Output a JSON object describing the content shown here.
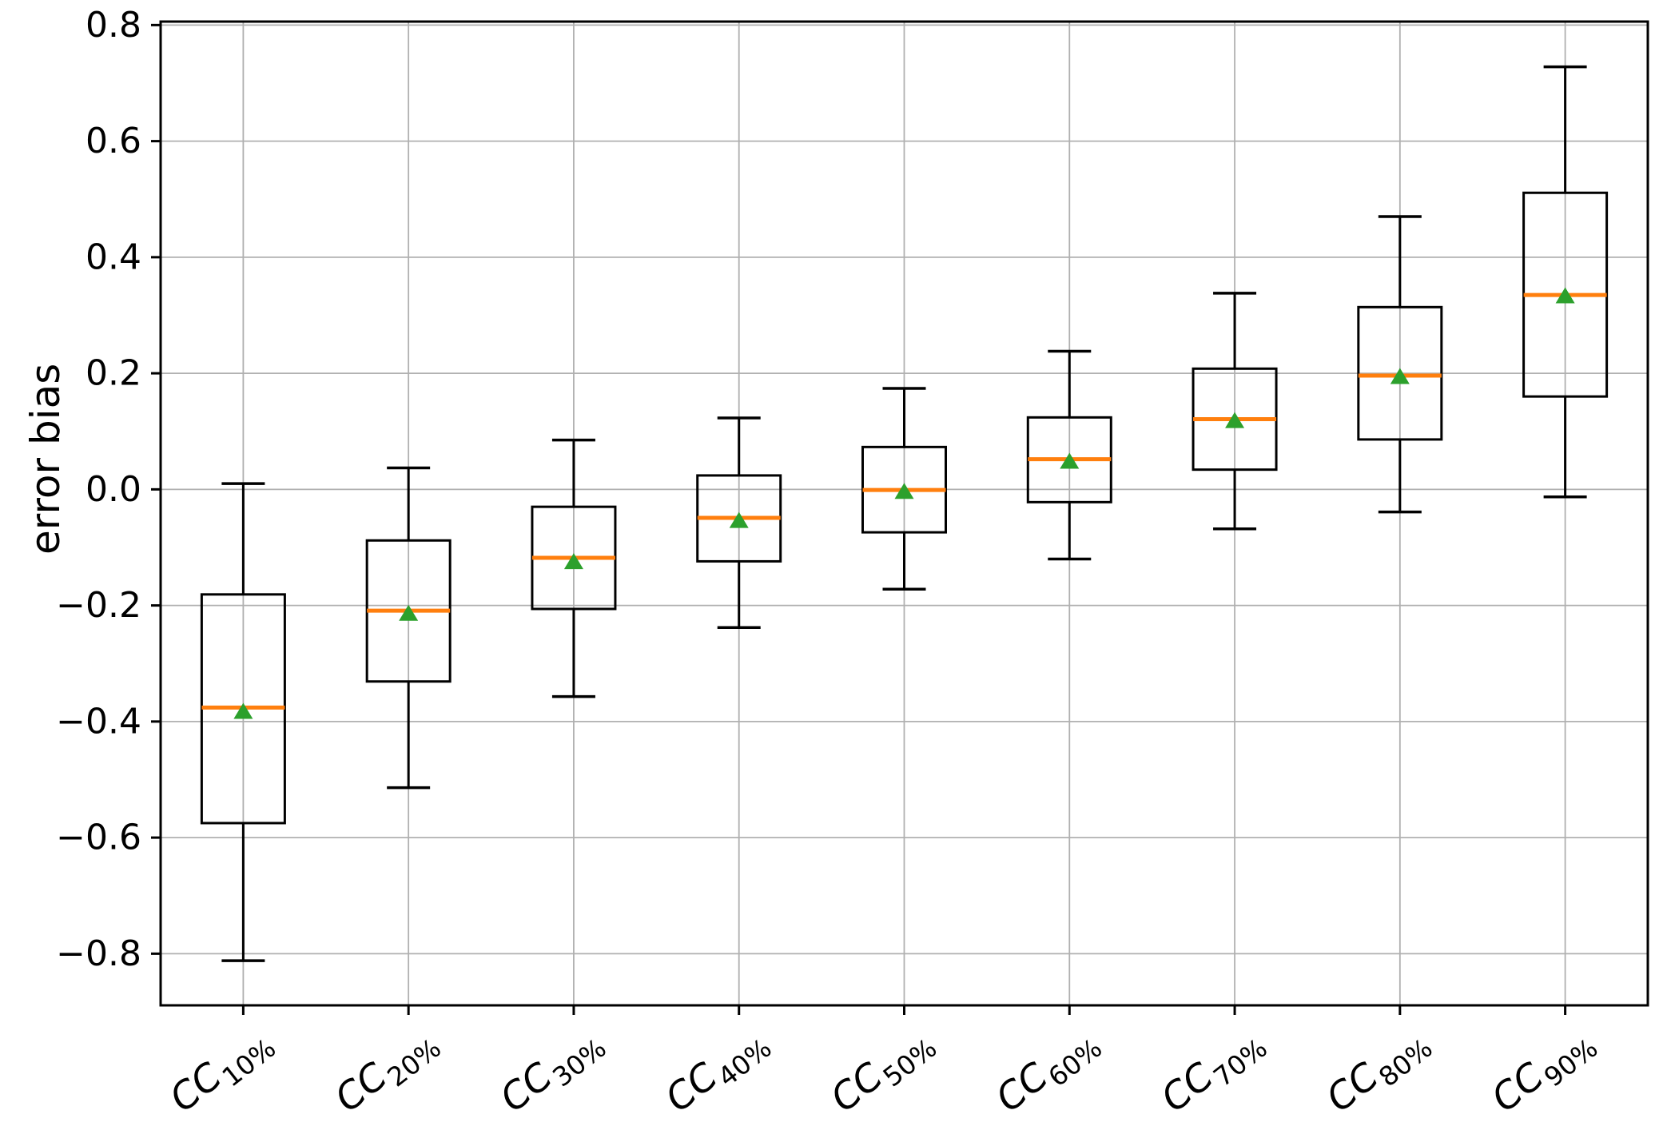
{
  "chart_data": {
    "type": "boxplot",
    "title": "",
    "xlabel": "",
    "ylabel": "error bias",
    "grid": true,
    "legend": null,
    "y_axis": {
      "label": "error bias",
      "ticks": [
        -0.8,
        -0.6,
        -0.4,
        -0.2,
        0.0,
        0.2,
        0.4,
        0.6,
        0.8
      ],
      "tick_labels": [
        "−0.8",
        "−0.6",
        "−0.4",
        "−0.2",
        "0.0",
        "0.2",
        "0.4",
        "0.6",
        "0.8"
      ],
      "lim": [
        -0.889,
        0.806
      ]
    },
    "categories": [
      {
        "base": "CC",
        "subscript": "10%"
      },
      {
        "base": "CC",
        "subscript": "20%"
      },
      {
        "base": "CC",
        "subscript": "30%"
      },
      {
        "base": "CC",
        "subscript": "40%"
      },
      {
        "base": "CC",
        "subscript": "50%"
      },
      {
        "base": "CC",
        "subscript": "60%"
      },
      {
        "base": "CC",
        "subscript": "70%"
      },
      {
        "base": "CC",
        "subscript": "80%"
      },
      {
        "base": "CC",
        "subscript": "90%"
      }
    ],
    "boxes": [
      {
        "category": "CC10%",
        "whisker_low": -0.812,
        "q1": -0.575,
        "median": -0.376,
        "q3": -0.181,
        "whisker_high": 0.01,
        "mean": -0.383
      },
      {
        "category": "CC20%",
        "whisker_low": -0.514,
        "q1": -0.331,
        "median": -0.209,
        "q3": -0.088,
        "whisker_high": 0.037,
        "mean": -0.214
      },
      {
        "category": "CC30%",
        "whisker_low": -0.357,
        "q1": -0.206,
        "median": -0.118,
        "q3": -0.03,
        "whisker_high": 0.085,
        "mean": -0.125
      },
      {
        "category": "CC40%",
        "whisker_low": -0.238,
        "q1": -0.124,
        "median": -0.049,
        "q3": 0.024,
        "whisker_high": 0.123,
        "mean": -0.054
      },
      {
        "category": "CC50%",
        "whisker_low": -0.172,
        "q1": -0.074,
        "median": -0.001,
        "q3": 0.073,
        "whisker_high": 0.174,
        "mean": -0.004
      },
      {
        "category": "CC60%",
        "whisker_low": -0.12,
        "q1": -0.022,
        "median": 0.052,
        "q3": 0.124,
        "whisker_high": 0.238,
        "mean": 0.048
      },
      {
        "category": "CC70%",
        "whisker_low": -0.068,
        "q1": 0.034,
        "median": 0.121,
        "q3": 0.208,
        "whisker_high": 0.338,
        "mean": 0.118
      },
      {
        "category": "CC80%",
        "whisker_low": -0.039,
        "q1": 0.086,
        "median": 0.196,
        "q3": 0.314,
        "whisker_high": 0.47,
        "mean": 0.194
      },
      {
        "category": "CC90%",
        "whisker_low": -0.013,
        "q1": 0.16,
        "median": 0.335,
        "q3": 0.511,
        "whisker_high": 0.728,
        "mean": 0.333
      }
    ],
    "style": {
      "box_color": "#000000",
      "median_color": "#ff7f0e",
      "mean_color": "#2ca02c",
      "mean_marker": "triangle-up",
      "grid_color": "#b0b0b0",
      "background": "#ffffff",
      "text_color": "#000000"
    }
  }
}
